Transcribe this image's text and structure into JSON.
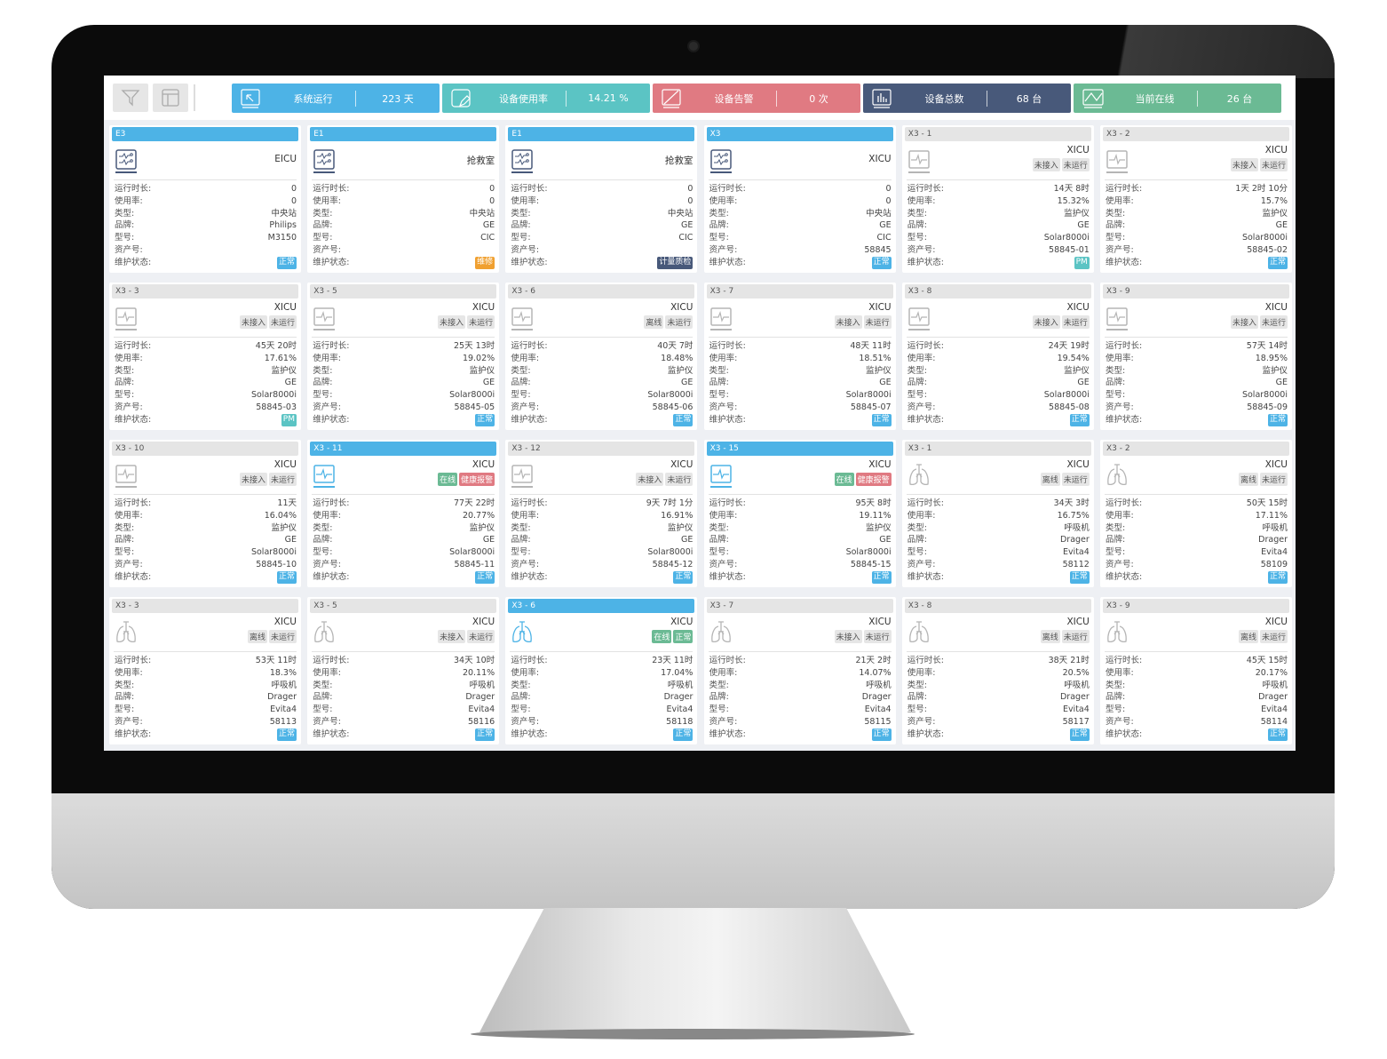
{
  "toolbar": {
    "filter_icon": "filter-icon",
    "layout_icon": "layout-icon"
  },
  "stats": [
    {
      "label": "系统运行",
      "value": "223 天",
      "color": "#4db3e6",
      "icon": "system-run-icon"
    },
    {
      "label": "设备使用率",
      "value": "14.21 %",
      "color": "#5bc4c4",
      "icon": "usage-edit-icon"
    },
    {
      "label": "设备告警",
      "value": "0 次",
      "color": "#e07a82",
      "icon": "alarm-icon"
    },
    {
      "label": "设备总数",
      "value": "68 台",
      "color": "#48597a",
      "icon": "bar-chart-icon"
    },
    {
      "label": "当前在线",
      "value": "26 台",
      "color": "#6bba94",
      "icon": "online-chart-icon"
    }
  ],
  "field_labels": [
    "运行时长:",
    "使用率:",
    "类型:",
    "品牌:",
    "型号:",
    "资产号:",
    "维护状态:"
  ],
  "colors": {
    "active_icon": "#4db3e6",
    "central_icon": "#48597a",
    "inactive_icon": "#b5b5b5",
    "maint_normal": "#4db3e6",
    "maint_repair": "#f0a030",
    "maint_metrology": "#48597a",
    "maint_pm": "#5bc4c4",
    "tag_online": "#6bba94",
    "tag_alarm": "#e07a82"
  },
  "cards": [
    {
      "title": "E3",
      "active": true,
      "icon": "central",
      "dept": "EICU",
      "tags": [],
      "values": [
        "0",
        "0",
        "中央站",
        "Philips",
        "M3150",
        ""
      ],
      "maint": {
        "label": "正常",
        "color": "#4db3e6"
      }
    },
    {
      "title": "E1",
      "active": true,
      "icon": "central",
      "dept": "抢救室",
      "tags": [],
      "values": [
        "0",
        "0",
        "中央站",
        "GE",
        "CIC",
        ""
      ],
      "maint": {
        "label": "维修",
        "color": "#f0a030"
      }
    },
    {
      "title": "E1",
      "active": true,
      "icon": "central",
      "dept": "抢救室",
      "tags": [],
      "values": [
        "0",
        "0",
        "中央站",
        "GE",
        "CIC",
        ""
      ],
      "maint": {
        "label": "计量质检",
        "color": "#48597a"
      }
    },
    {
      "title": "X3",
      "active": true,
      "icon": "central",
      "dept": "XICU",
      "tags": [],
      "values": [
        "0",
        "0",
        "中央站",
        "GE",
        "CIC",
        "58845"
      ],
      "maint": {
        "label": "正常",
        "color": "#4db3e6"
      }
    },
    {
      "title": "X3 - 1",
      "active": false,
      "icon": "monitor",
      "dept": "XICU",
      "tags": [
        {
          "label": "未接入"
        },
        {
          "label": "未运行"
        }
      ],
      "values": [
        "14天 8时",
        "15.32%",
        "监护仪",
        "GE",
        "Solar8000i",
        "58845-01"
      ],
      "maint": {
        "label": "PM",
        "color": "#5bc4c4"
      }
    },
    {
      "title": "X3 - 2",
      "active": false,
      "icon": "monitor",
      "dept": "XICU",
      "tags": [
        {
          "label": "未接入"
        },
        {
          "label": "未运行"
        }
      ],
      "values": [
        "1天 2时 10分",
        "15.7%",
        "监护仪",
        "GE",
        "Solar8000i",
        "58845-02"
      ],
      "maint": {
        "label": "正常",
        "color": "#4db3e6"
      }
    },
    {
      "title": "X3 - 3",
      "active": false,
      "icon": "monitor",
      "dept": "XICU",
      "tags": [
        {
          "label": "未接入"
        },
        {
          "label": "未运行"
        }
      ],
      "values": [
        "45天 20时",
        "17.61%",
        "监护仪",
        "GE",
        "Solar8000i",
        "58845-03"
      ],
      "maint": {
        "label": "PM",
        "color": "#5bc4c4"
      }
    },
    {
      "title": "X3 - 5",
      "active": false,
      "icon": "monitor",
      "dept": "XICU",
      "tags": [
        {
          "label": "未接入"
        },
        {
          "label": "未运行"
        }
      ],
      "values": [
        "25天 13时",
        "19.02%",
        "监护仪",
        "GE",
        "Solar8000i",
        "58845-05"
      ],
      "maint": {
        "label": "正常",
        "color": "#4db3e6"
      }
    },
    {
      "title": "X3 - 6",
      "active": false,
      "icon": "monitor",
      "dept": "XICU",
      "tags": [
        {
          "label": "离线"
        },
        {
          "label": "未运行"
        }
      ],
      "values": [
        "40天 7时",
        "18.48%",
        "监护仪",
        "GE",
        "Solar8000i",
        "58845-06"
      ],
      "maint": {
        "label": "正常",
        "color": "#4db3e6"
      }
    },
    {
      "title": "X3 - 7",
      "active": false,
      "icon": "monitor",
      "dept": "XICU",
      "tags": [
        {
          "label": "未接入"
        },
        {
          "label": "未运行"
        }
      ],
      "values": [
        "48天 11时",
        "18.51%",
        "监护仪",
        "GE",
        "Solar8000i",
        "58845-07"
      ],
      "maint": {
        "label": "正常",
        "color": "#4db3e6"
      }
    },
    {
      "title": "X3 - 8",
      "active": false,
      "icon": "monitor",
      "dept": "XICU",
      "tags": [
        {
          "label": "未接入"
        },
        {
          "label": "未运行"
        }
      ],
      "values": [
        "24天 19时",
        "19.54%",
        "监护仪",
        "GE",
        "Solar8000i",
        "58845-08"
      ],
      "maint": {
        "label": "正常",
        "color": "#4db3e6"
      }
    },
    {
      "title": "X3 - 9",
      "active": false,
      "icon": "monitor",
      "dept": "XICU",
      "tags": [
        {
          "label": "未接入"
        },
        {
          "label": "未运行"
        }
      ],
      "values": [
        "57天 14时",
        "18.95%",
        "监护仪",
        "GE",
        "Solar8000i",
        "58845-09"
      ],
      "maint": {
        "label": "正常",
        "color": "#4db3e6"
      }
    },
    {
      "title": "X3 - 10",
      "active": false,
      "icon": "monitor",
      "dept": "XICU",
      "tags": [
        {
          "label": "未接入"
        },
        {
          "label": "未运行"
        }
      ],
      "values": [
        "11天",
        "16.04%",
        "监护仪",
        "GE",
        "Solar8000i",
        "58845-10"
      ],
      "maint": {
        "label": "正常",
        "color": "#4db3e6"
      }
    },
    {
      "title": "X3 - 11",
      "active": true,
      "icon": "monitor",
      "dept": "XICU",
      "tags": [
        {
          "label": "在线",
          "color": "#6bba94"
        },
        {
          "label": "健康报警",
          "color": "#e07a82"
        }
      ],
      "values": [
        "77天 22时",
        "20.77%",
        "监护仪",
        "GE",
        "Solar8000i",
        "58845-11"
      ],
      "maint": {
        "label": "正常",
        "color": "#4db3e6"
      }
    },
    {
      "title": "X3 - 12",
      "active": false,
      "icon": "monitor",
      "dept": "XICU",
      "tags": [
        {
          "label": "未接入"
        },
        {
          "label": "未运行"
        }
      ],
      "values": [
        "9天 7时 1分",
        "16.91%",
        "监护仪",
        "GE",
        "Solar8000i",
        "58845-12"
      ],
      "maint": {
        "label": "正常",
        "color": "#4db3e6"
      }
    },
    {
      "title": "X3 - 15",
      "active": true,
      "icon": "monitor",
      "dept": "XICU",
      "tags": [
        {
          "label": "在线",
          "color": "#6bba94"
        },
        {
          "label": "健康报警",
          "color": "#e07a82"
        }
      ],
      "values": [
        "95天 8时",
        "19.11%",
        "监护仪",
        "GE",
        "Solar8000i",
        "58845-15"
      ],
      "maint": {
        "label": "正常",
        "color": "#4db3e6"
      }
    },
    {
      "title": "X3 - 1",
      "active": false,
      "icon": "ventilator",
      "dept": "XICU",
      "tags": [
        {
          "label": "离线"
        },
        {
          "label": "未运行"
        }
      ],
      "values": [
        "34天 3时",
        "16.75%",
        "呼吸机",
        "Drager",
        "Evita4",
        "58112"
      ],
      "maint": {
        "label": "正常",
        "color": "#4db3e6"
      }
    },
    {
      "title": "X3 - 2",
      "active": false,
      "icon": "ventilator",
      "dept": "XICU",
      "tags": [
        {
          "label": "离线"
        },
        {
          "label": "未运行"
        }
      ],
      "values": [
        "50天 15时",
        "17.11%",
        "呼吸机",
        "Drager",
        "Evita4",
        "58109"
      ],
      "maint": {
        "label": "正常",
        "color": "#4db3e6"
      }
    },
    {
      "title": "X3 - 3",
      "active": false,
      "icon": "ventilator",
      "dept": "XICU",
      "tags": [
        {
          "label": "离线"
        },
        {
          "label": "未运行"
        }
      ],
      "values": [
        "53天 11时",
        "18.3%",
        "呼吸机",
        "Drager",
        "Evita4",
        "58113"
      ],
      "maint": {
        "label": "正常",
        "color": "#4db3e6"
      }
    },
    {
      "title": "X3 - 5",
      "active": false,
      "icon": "ventilator",
      "dept": "XICU",
      "tags": [
        {
          "label": "未接入"
        },
        {
          "label": "未运行"
        }
      ],
      "values": [
        "34天 10时",
        "20.11%",
        "呼吸机",
        "Drager",
        "Evita4",
        "58116"
      ],
      "maint": {
        "label": "正常",
        "color": "#4db3e6"
      }
    },
    {
      "title": "X3 - 6",
      "active": true,
      "icon": "ventilator",
      "dept": "XICU",
      "tags": [
        {
          "label": "在线",
          "color": "#6bba94"
        },
        {
          "label": "正常",
          "color": "#6bba94"
        }
      ],
      "values": [
        "23天 11时",
        "17.04%",
        "呼吸机",
        "Drager",
        "Evita4",
        "58118"
      ],
      "maint": {
        "label": "正常",
        "color": "#4db3e6"
      }
    },
    {
      "title": "X3 - 7",
      "active": false,
      "icon": "ventilator",
      "dept": "XICU",
      "tags": [
        {
          "label": "未接入"
        },
        {
          "label": "未运行"
        }
      ],
      "values": [
        "21天 2时",
        "14.07%",
        "呼吸机",
        "Drager",
        "Evita4",
        "58115"
      ],
      "maint": {
        "label": "正常",
        "color": "#4db3e6"
      }
    },
    {
      "title": "X3 - 8",
      "active": false,
      "icon": "ventilator",
      "dept": "XICU",
      "tags": [
        {
          "label": "离线"
        },
        {
          "label": "未运行"
        }
      ],
      "values": [
        "38天 21时",
        "20.5%",
        "呼吸机",
        "Drager",
        "Evita4",
        "58117"
      ],
      "maint": {
        "label": "正常",
        "color": "#4db3e6"
      }
    },
    {
      "title": "X3 - 9",
      "active": false,
      "icon": "ventilator",
      "dept": "XICU",
      "tags": [
        {
          "label": "离线"
        },
        {
          "label": "未运行"
        }
      ],
      "values": [
        "45天 15时",
        "20.17%",
        "呼吸机",
        "Drager",
        "Evita4",
        "58114"
      ],
      "maint": {
        "label": "正常",
        "color": "#4db3e6"
      }
    }
  ]
}
